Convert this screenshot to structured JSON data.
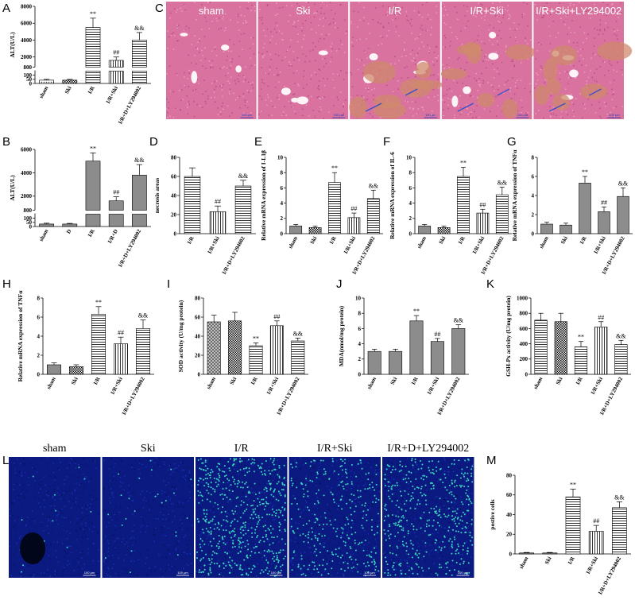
{
  "panel_letters": {
    "A": "A",
    "B": "B",
    "C": "C",
    "D": "D",
    "E": "E",
    "F": "F",
    "G": "G",
    "H": "H",
    "I": "I",
    "J": "J",
    "K": "K",
    "L": "L",
    "M": "M"
  },
  "histology": {
    "titles": [
      "sham",
      "Ski",
      "I/R",
      "I/R+Ski",
      "I/R+Ski+LY294002"
    ],
    "scale_bar": "100 μm",
    "colors": {
      "tissue": "#d9729e",
      "hemorrhage": "#cf8a6c",
      "arrow": "#3a4fc8"
    }
  },
  "fluorescence": {
    "titles": [
      "sham",
      "Ski",
      "I/R",
      "I/R+Ski",
      "I/R+D+LY294002"
    ],
    "scale_bars": [
      "100 μm",
      "100 μm",
      "100 μm",
      "100 μm",
      "100 μm"
    ],
    "colors": {
      "background": "#0a1a80",
      "positive": "#3cd7c0"
    },
    "positive_density": [
      0.002,
      0.004,
      0.09,
      0.05,
      0.07
    ]
  },
  "chart_data": [
    {
      "panel": "A",
      "type": "bar",
      "categories": [
        "sham",
        "Ski",
        "I/R",
        "I/R+Ski",
        "I/R+D+LY294002"
      ],
      "values": [
        40,
        40,
        5500,
        1600,
        4000
      ],
      "errors": [
        10,
        10,
        1100,
        400,
        900
      ],
      "ylabel": "ALT(U/L)",
      "ylim": [
        0,
        8000
      ],
      "axis_break": [
        150,
        800
      ],
      "yticks": [
        0,
        50,
        100,
        800,
        2000,
        4000,
        6000,
        8000
      ],
      "annotations": [
        "",
        "",
        "**",
        "##",
        "&&"
      ],
      "patterns": [
        "dots",
        "checker",
        "hlines",
        "vlines",
        "hlines"
      ]
    },
    {
      "panel": "B",
      "type": "bar",
      "categories": [
        "sham",
        "D",
        "I/R",
        "I/R+D",
        "I/R+D+LY294002"
      ],
      "values": [
        30,
        30,
        5000,
        1600,
        3800
      ],
      "errors": [
        10,
        8,
        700,
        350,
        900
      ],
      "ylabel": "ALT(U/L)",
      "ylim": [
        0,
        6000
      ],
      "axis_break": [
        150,
        800
      ],
      "yticks": [
        0,
        50,
        100,
        800,
        2000,
        4000,
        6000
      ],
      "annotations": [
        "",
        "",
        "**",
        "##",
        "&&"
      ],
      "patterns": [
        "gray",
        "gray",
        "gray",
        "gray",
        "gray"
      ]
    },
    {
      "panel": "D",
      "type": "bar",
      "categories": [
        "I/R",
        "I/R+Ski",
        "I/R+D+LY294002"
      ],
      "values": [
        60,
        23,
        50
      ],
      "errors": [
        9,
        6,
        6
      ],
      "ylabel": "necrosis areas",
      "ylim": [
        0,
        80
      ],
      "yticks": [
        0,
        20,
        40,
        60,
        80
      ],
      "annotations": [
        "",
        "##",
        "&&"
      ],
      "patterns": [
        "hlines",
        "vlines",
        "hlines"
      ]
    },
    {
      "panel": "E",
      "type": "bar",
      "categories": [
        "sham",
        "Ski",
        "I/R",
        "I/R+Ski",
        "I/R+D+LY294002"
      ],
      "values": [
        1.0,
        0.8,
        6.7,
        2.1,
        4.6
      ],
      "errors": [
        0.2,
        0.2,
        1.3,
        0.6,
        1.1
      ],
      "ylabel": "Relative mRNA expression of I-L1β",
      "ylim": [
        0,
        10
      ],
      "yticks": [
        0,
        2,
        4,
        6,
        8,
        10
      ],
      "annotations": [
        "",
        "",
        "**",
        "##",
        "&&"
      ],
      "patterns": [
        "gray",
        "checker",
        "hlines",
        "vlines",
        "hlines"
      ]
    },
    {
      "panel": "F",
      "type": "bar",
      "categories": [
        "sham",
        "Ski",
        "I/R",
        "I/R+Ski",
        "I/R+D+LY294002"
      ],
      "values": [
        1.0,
        0.8,
        7.5,
        2.7,
        5.1
      ],
      "errors": [
        0.2,
        0.2,
        1.2,
        0.5,
        1.0
      ],
      "ylabel": "Relative mRNA expression of IL-6",
      "ylim": [
        0,
        10
      ],
      "yticks": [
        0,
        2,
        4,
        6,
        8,
        10
      ],
      "annotations": [
        "",
        "",
        "**",
        "##",
        "&&"
      ],
      "patterns": [
        "gray",
        "checker",
        "hlines",
        "vlines",
        "hlines"
      ]
    },
    {
      "panel": "G",
      "type": "bar",
      "categories": [
        "sham",
        "Ski",
        "I/R",
        "I/R+Ski",
        "I/R+D+LY294002"
      ],
      "values": [
        1.0,
        0.9,
        5.3,
        2.3,
        3.9
      ],
      "errors": [
        0.2,
        0.2,
        0.7,
        0.5,
        0.9
      ],
      "ylabel": "Relative mRNA expression of TNFα",
      "ylim": [
        0,
        8
      ],
      "yticks": [
        0,
        2,
        4,
        6,
        8
      ],
      "annotations": [
        "",
        "",
        "**",
        "##",
        "&&"
      ],
      "patterns": [
        "gray",
        "gray",
        "gray",
        "gray",
        "gray"
      ]
    },
    {
      "panel": "H",
      "type": "bar",
      "categories": [
        "sham",
        "Ski",
        "I/R",
        "I/R+Ski",
        "I/R+D+LY294002"
      ],
      "values": [
        1.0,
        0.8,
        6.3,
        3.2,
        4.8
      ],
      "errors": [
        0.2,
        0.2,
        0.8,
        0.7,
        0.9
      ],
      "ylabel": "Relative mRNA expression of TNFα",
      "ylim": [
        0,
        8
      ],
      "yticks": [
        0,
        2,
        4,
        6,
        8
      ],
      "annotations": [
        "",
        "",
        "**",
        "##",
        "&&"
      ],
      "patterns": [
        "gray",
        "checker",
        "hlines",
        "vlines",
        "hlines"
      ]
    },
    {
      "panel": "I",
      "type": "bar",
      "categories": [
        "sham",
        "Ski",
        "I/R",
        "I/R+Ski",
        "I/R+D+LY294002"
      ],
      "values": [
        55,
        56,
        30,
        51,
        35
      ],
      "errors": [
        7,
        9,
        3,
        5,
        3
      ],
      "ylabel": "SOD activity (U/mg protein)",
      "ylim": [
        0,
        80
      ],
      "yticks": [
        0,
        20,
        40,
        60,
        80
      ],
      "annotations": [
        "",
        "",
        "**",
        "##",
        "&&"
      ],
      "patterns": [
        "crosshatch",
        "checker",
        "hlines",
        "vlines",
        "hlines"
      ]
    },
    {
      "panel": "J",
      "type": "bar",
      "categories": [
        "sham",
        "Ski",
        "I/R",
        "I/R+Ski",
        "I/R+D+LY294002"
      ],
      "values": [
        3.0,
        3.0,
        7.0,
        4.3,
        6.0
      ],
      "errors": [
        0.3,
        0.3,
        0.7,
        0.4,
        0.5
      ],
      "ylabel": "MDA(nmol/mg protein)",
      "ylim": [
        0,
        10
      ],
      "yticks": [
        0,
        2,
        4,
        6,
        8,
        10
      ],
      "annotations": [
        "",
        "",
        "**",
        "##",
        "&&"
      ],
      "patterns": [
        "gray",
        "gray",
        "gray",
        "gray",
        "gray"
      ]
    },
    {
      "panel": "K",
      "type": "bar",
      "categories": [
        "sham",
        "Ski",
        "I/R",
        "I/R+Ski",
        "I/R+D+LY294002"
      ],
      "values": [
        710,
        690,
        360,
        620,
        390
      ],
      "errors": [
        90,
        110,
        70,
        70,
        55
      ],
      "ylabel": "GSH-Px activity (U/mg protein)",
      "ylim": [
        0,
        1000
      ],
      "yticks": [
        0,
        200,
        400,
        600,
        800,
        1000
      ],
      "annotations": [
        "",
        "",
        "**",
        "##",
        "&&"
      ],
      "patterns": [
        "hlines",
        "checker",
        "hlines",
        "vlines",
        "hlines"
      ]
    },
    {
      "panel": "M",
      "type": "bar",
      "categories": [
        "sham",
        "Ski",
        "I/R",
        "I/R+Ski",
        "I/R+D+LY294002"
      ],
      "values": [
        1,
        1,
        58,
        23,
        47
      ],
      "errors": [
        0.5,
        0.5,
        8,
        6,
        6
      ],
      "ylabel": "postive cells",
      "ylim": [
        0,
        80
      ],
      "yticks": [
        0,
        20,
        40,
        60,
        80
      ],
      "annotations": [
        "",
        "",
        "**",
        "##",
        "&&"
      ],
      "patterns": [
        "gray",
        "gray",
        "hlines",
        "vlines",
        "hlines"
      ]
    }
  ]
}
